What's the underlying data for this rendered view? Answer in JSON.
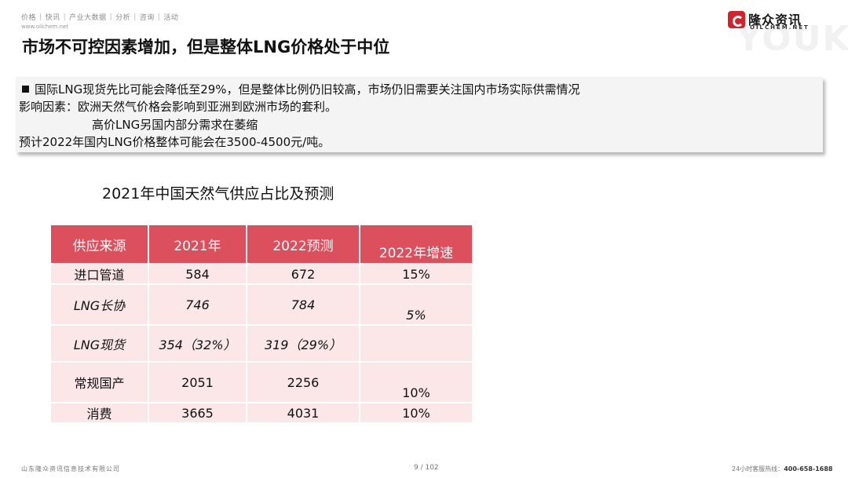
{
  "header": {
    "nav_items": [
      "价格",
      "快讯",
      "产业大数据",
      "分析",
      "咨询",
      "活动"
    ],
    "site_url": "www.oilchem.net",
    "logo_cn": "隆众资讯",
    "logo_en": "OILCHEM.NET",
    "watermark": "YOUKU"
  },
  "title": "市场不可控因素增加，但是整体LNG价格处于中位",
  "summary": {
    "line1": "国际LNG现货先比可能会降低至29%，但是整体比例仍旧较高，市场仍旧需要关注国内市场实际供需情况",
    "line2": "影响因素：欧洲天然气价格会影响到亚洲到欧洲市场的套利。",
    "line3": "高价LNG另国内部分需求在萎缩",
    "line4": "预计2022年国内LNG价格整体可能会在3500-4500元/吨。"
  },
  "table": {
    "title": "2021年中国天然气供应占比及预测",
    "headers": [
      "供应来源",
      "2021年",
      "2022预测",
      "2022年增速"
    ],
    "rows": [
      {
        "source": "进口管道",
        "y2021": "584",
        "y2022": "672",
        "growth": "15%"
      },
      {
        "source": "LNG长协",
        "y2021": "746",
        "y2022": "784",
        "growth": "5%"
      },
      {
        "source": "LNG现货",
        "y2021": "354（32%）",
        "y2022": "319（29%）",
        "growth": ""
      },
      {
        "source": "常规国产",
        "y2021": "2051",
        "y2022": "2256",
        "growth": "10%"
      },
      {
        "source": "消费",
        "y2021": "3665",
        "y2022": "4031",
        "growth": "10%"
      }
    ]
  },
  "footer": {
    "company": "山东隆众资讯信息技术有限公司",
    "page": "9 / 102",
    "hotline_label": "24小时客服热线：",
    "hotline_number": "400-658-1688"
  },
  "colors": {
    "header_fill": "#dc505d",
    "cell_fill": "#fbe6e8",
    "brand_red": "#d2222c"
  }
}
